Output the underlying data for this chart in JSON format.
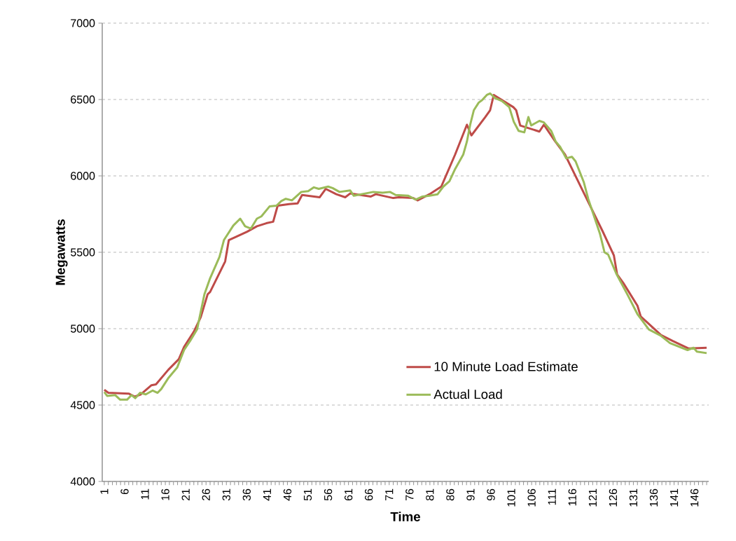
{
  "chart_data": {
    "type": "line",
    "xlabel": "Time",
    "ylabel": "Megawatts",
    "xlim": [
      0.5,
      149.5
    ],
    "ylim": [
      4000,
      7000
    ],
    "yticks": [
      4000,
      4500,
      5000,
      5500,
      6000,
      6500,
      7000
    ],
    "xticks": [
      1,
      {
        "value": 2,
        "label": null
      },
      {
        "value": 3,
        "label": null
      },
      {
        "value": 4,
        "label": null
      },
      {
        "value": 5,
        "label": null
      },
      6,
      {
        "value": 7,
        "label": null
      },
      {
        "value": 8,
        "label": null
      },
      {
        "value": 9,
        "label": null
      },
      {
        "value": 10,
        "label": null
      },
      11,
      {
        "value": 12,
        "label": null
      },
      {
        "value": 13,
        "label": null
      },
      {
        "value": 14,
        "label": null
      },
      {
        "value": 15,
        "label": null
      },
      16,
      {
        "value": 17,
        "label": null
      },
      {
        "value": 18,
        "label": null
      },
      {
        "value": 19,
        "label": null
      },
      {
        "value": 20,
        "label": null
      },
      21,
      {
        "value": 22,
        "label": null
      },
      {
        "value": 23,
        "label": null
      },
      {
        "value": 24,
        "label": null
      },
      {
        "value": 25,
        "label": null
      },
      26,
      {
        "value": 27,
        "label": null
      },
      {
        "value": 28,
        "label": null
      },
      {
        "value": 29,
        "label": null
      },
      {
        "value": 30,
        "label": null
      },
      31,
      {
        "value": 32,
        "label": null
      },
      {
        "value": 33,
        "label": null
      },
      {
        "value": 34,
        "label": null
      },
      {
        "value": 35,
        "label": null
      },
      36,
      {
        "value": 37,
        "label": null
      },
      {
        "value": 38,
        "label": null
      },
      {
        "value": 39,
        "label": null
      },
      {
        "value": 40,
        "label": null
      },
      41,
      {
        "value": 42,
        "label": null
      },
      {
        "value": 43,
        "label": null
      },
      {
        "value": 44,
        "label": null
      },
      {
        "value": 45,
        "label": null
      },
      46,
      {
        "value": 47,
        "label": null
      },
      {
        "value": 48,
        "label": null
      },
      {
        "value": 49,
        "label": null
      },
      {
        "value": 50,
        "label": null
      },
      51,
      {
        "value": 52,
        "label": null
      },
      {
        "value": 53,
        "label": null
      },
      {
        "value": 54,
        "label": null
      },
      {
        "value": 55,
        "label": null
      },
      56,
      {
        "value": 57,
        "label": null
      },
      {
        "value": 58,
        "label": null
      },
      {
        "value": 59,
        "label": null
      },
      {
        "value": 60,
        "label": null
      },
      61,
      {
        "value": 62,
        "label": null
      },
      {
        "value": 63,
        "label": null
      },
      {
        "value": 64,
        "label": null
      },
      {
        "value": 65,
        "label": null
      },
      66,
      {
        "value": 67,
        "label": null
      },
      {
        "value": 68,
        "label": null
      },
      {
        "value": 69,
        "label": null
      },
      {
        "value": 70,
        "label": null
      },
      71,
      {
        "value": 72,
        "label": null
      },
      {
        "value": 73,
        "label": null
      },
      {
        "value": 74,
        "label": null
      },
      {
        "value": 75,
        "label": null
      },
      76,
      {
        "value": 77,
        "label": null
      },
      {
        "value": 78,
        "label": null
      },
      {
        "value": 79,
        "label": null
      },
      {
        "value": 80,
        "label": null
      },
      81,
      {
        "value": 82,
        "label": null
      },
      {
        "value": 83,
        "label": null
      },
      {
        "value": 84,
        "label": null
      },
      {
        "value": 85,
        "label": null
      },
      86,
      {
        "value": 87,
        "label": null
      },
      {
        "value": 88,
        "label": null
      },
      {
        "value": 89,
        "label": null
      },
      {
        "value": 90,
        "label": null
      },
      91,
      {
        "value": 92,
        "label": null
      },
      {
        "value": 93,
        "label": null
      },
      {
        "value": 94,
        "label": null
      },
      {
        "value": 95,
        "label": null
      },
      96,
      {
        "value": 97,
        "label": null
      },
      {
        "value": 98,
        "label": null
      },
      {
        "value": 99,
        "label": null
      },
      {
        "value": 100,
        "label": null
      },
      101,
      {
        "value": 102,
        "label": null
      },
      {
        "value": 103,
        "label": null
      },
      {
        "value": 104,
        "label": null
      },
      {
        "value": 105,
        "label": null
      },
      106,
      {
        "value": 107,
        "label": null
      },
      {
        "value": 108,
        "label": null
      },
      {
        "value": 109,
        "label": null
      },
      {
        "value": 110,
        "label": null
      },
      111,
      {
        "value": 112,
        "label": null
      },
      {
        "value": 113,
        "label": null
      },
      {
        "value": 114,
        "label": null
      },
      {
        "value": 115,
        "label": null
      },
      116,
      {
        "value": 117,
        "label": null
      },
      {
        "value": 118,
        "label": null
      },
      {
        "value": 119,
        "label": null
      },
      {
        "value": 120,
        "label": null
      },
      121,
      {
        "value": 122,
        "label": null
      },
      {
        "value": 123,
        "label": null
      },
      {
        "value": 124,
        "label": null
      },
      {
        "value": 125,
        "label": null
      },
      126,
      {
        "value": 127,
        "label": null
      },
      {
        "value": 128,
        "label": null
      },
      {
        "value": 129,
        "label": null
      },
      {
        "value": 130,
        "label": null
      },
      131,
      {
        "value": 132,
        "label": null
      },
      {
        "value": 133,
        "label": null
      },
      {
        "value": 134,
        "label": null
      },
      {
        "value": 135,
        "label": null
      },
      136,
      {
        "value": 137,
        "label": null
      },
      {
        "value": 138,
        "label": null
      },
      {
        "value": 139,
        "label": null
      },
      {
        "value": 140,
        "label": null
      },
      141,
      {
        "value": 142,
        "label": null
      },
      {
        "value": 143,
        "label": null
      },
      {
        "value": 144,
        "label": null
      },
      {
        "value": 145,
        "label": null
      },
      146,
      {
        "value": 147,
        "label": null
      },
      {
        "value": 148,
        "label": null
      },
      {
        "value": 149,
        "label": null
      }
    ],
    "grid": "y",
    "legend": "bottom",
    "series": [
      {
        "name": "10 Minute Load Estimate",
        "color": "#be4b48",
        "x": [
          1,
          2,
          7,
          8.5,
          10,
          12.6,
          13.7,
          16.7,
          19.3,
          20.6,
          23,
          24.7,
          26.4,
          27,
          30.7,
          31.6,
          33.3,
          36.1,
          38.5,
          40.8,
          42.5,
          43.6,
          46.4,
          48.5,
          49.6,
          53.9,
          55.4,
          58,
          60.2,
          61.4,
          66.5,
          67.7,
          72,
          73.4,
          76.9,
          78,
          80.9,
          83.8,
          87.2,
          90.1,
          91.2,
          94.6,
          95.8,
          96.7,
          101.5,
          102.2,
          103.2,
          107.9,
          109,
          111.8,
          114.2,
          115.3,
          119.9,
          123.4,
          126.2,
          127,
          128.5,
          132,
          132.8,
          137.7,
          140.6,
          144.6,
          149
        ],
        "values": [
          4600,
          4580,
          4575,
          4555,
          4570,
          4630,
          4635,
          4730,
          4800,
          4880,
          4980,
          5075,
          5225,
          5240,
          5440,
          5580,
          5600,
          5635,
          5670,
          5690,
          5700,
          5805,
          5815,
          5820,
          5875,
          5860,
          5915,
          5880,
          5860,
          5885,
          5865,
          5880,
          5855,
          5860,
          5855,
          5840,
          5880,
          5930,
          6140,
          6335,
          6265,
          6385,
          6430,
          6530,
          6450,
          6430,
          6330,
          6290,
          6335,
          6225,
          6140,
          6080,
          5830,
          5640,
          5480,
          5355,
          5300,
          5150,
          5080,
          4960,
          4920,
          4870,
          4875
        ]
      },
      {
        "name": "Actual Load",
        "color": "#9bbb59",
        "x": [
          1,
          1.7,
          3.7,
          4.9,
          6.6,
          7.7,
          8.6,
          9.8,
          11.2,
          12.9,
          14.1,
          15,
          16.7,
          18.9,
          20.6,
          22.1,
          23.8,
          25.6,
          27,
          29.3,
          30.4,
          32.7,
          34.4,
          35.6,
          37,
          38.5,
          39.6,
          41.6,
          43.3,
          44.5,
          45.6,
          47.1,
          49.4,
          51.1,
          52.5,
          53.7,
          56,
          57.1,
          58.8,
          61.4,
          62.3,
          67.1,
          69.4,
          71.2,
          72.6,
          75.7,
          77.5,
          79.2,
          80.9,
          82.9,
          84.3,
          85.8,
          87.2,
          89.2,
          90.1,
          90.9,
          91.8,
          93,
          93.8,
          95,
          95.8,
          97,
          98.7,
          100.5,
          101.6,
          102.8,
          104.2,
          105.2,
          105.9,
          107.9,
          109,
          110.8,
          111.9,
          113,
          114.5,
          115.9,
          116.8,
          118.8,
          119.9,
          122.8,
          123.9,
          124.8,
          126.8,
          129.7,
          132,
          134.8,
          137.7,
          140,
          144.3,
          145.8,
          146.6,
          149
        ],
        "values": [
          4585,
          4560,
          4565,
          4535,
          4535,
          4565,
          4545,
          4580,
          4570,
          4595,
          4580,
          4605,
          4675,
          4745,
          4860,
          4920,
          4995,
          5225,
          5330,
          5470,
          5580,
          5675,
          5720,
          5670,
          5655,
          5720,
          5735,
          5800,
          5805,
          5835,
          5850,
          5840,
          5895,
          5900,
          5925,
          5915,
          5930,
          5920,
          5895,
          5905,
          5870,
          5895,
          5890,
          5895,
          5875,
          5870,
          5845,
          5865,
          5870,
          5880,
          5930,
          5965,
          6045,
          6140,
          6225,
          6335,
          6430,
          6480,
          6495,
          6530,
          6540,
          6510,
          6490,
          6450,
          6355,
          6295,
          6285,
          6385,
          6330,
          6360,
          6350,
          6295,
          6225,
          6190,
          6115,
          6125,
          6095,
          5960,
          5850,
          5620,
          5500,
          5485,
          5360,
          5215,
          5095,
          4995,
          4955,
          4905,
          4860,
          4875,
          4850,
          4840
        ]
      }
    ]
  }
}
